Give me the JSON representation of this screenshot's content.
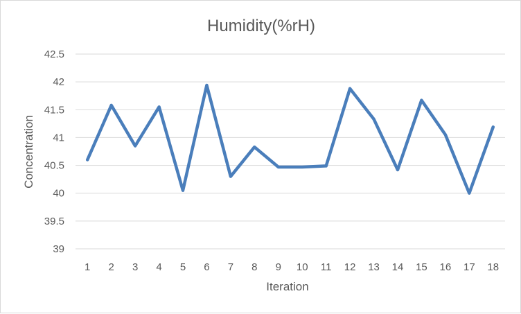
{
  "chart_data": {
    "type": "line",
    "title": "Humidity(%rH)",
    "xlabel": "Iteration",
    "ylabel": "Concentration",
    "categories": [
      "1",
      "2",
      "3",
      "4",
      "5",
      "6",
      "7",
      "8",
      "9",
      "10",
      "11",
      "12",
      "13",
      "14",
      "15",
      "16",
      "17",
      "18"
    ],
    "series": [
      {
        "values": [
          40.6,
          41.58,
          40.85,
          41.55,
          40.05,
          41.94,
          40.3,
          40.83,
          40.47,
          40.47,
          40.49,
          41.88,
          41.33,
          40.42,
          41.67,
          41.05,
          40.0,
          41.19
        ]
      }
    ],
    "ylim": [
      39,
      42.5
    ],
    "yticks": [
      "39",
      "39.5",
      "40",
      "40.5",
      "41",
      "41.5",
      "42",
      "42.5"
    ],
    "grid": true,
    "legend": "none",
    "line_color": "#4a7ebb"
  }
}
